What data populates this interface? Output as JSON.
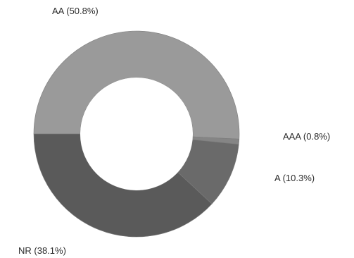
{
  "chart_data": {
    "type": "pie",
    "style": "donut",
    "title": "",
    "slices": [
      {
        "label": "AA (50.8%)",
        "category": "AA",
        "value": 50.8,
        "color": "#9a9a9a"
      },
      {
        "label": "AAA (0.8%)",
        "category": "AAA",
        "value": 0.8,
        "color": "#858585"
      },
      {
        "label": "A (10.3%)",
        "category": "A",
        "value": 10.3,
        "color": "#6a6a6a"
      },
      {
        "label": "NR (38.1%)",
        "category": "NR",
        "value": 38.1,
        "color": "#5a5a5a"
      }
    ]
  }
}
